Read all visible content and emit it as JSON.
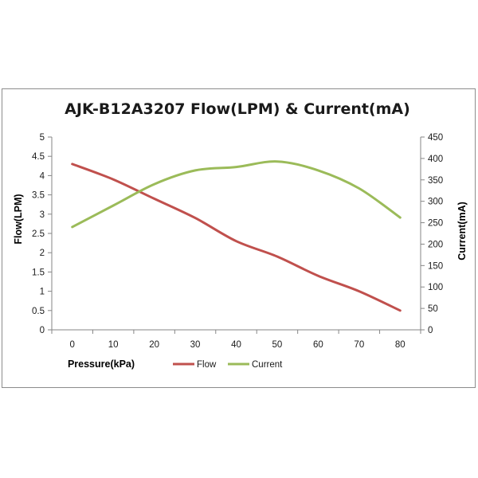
{
  "chart_data": {
    "type": "line",
    "title": "AJK-B12A3207 Flow(LPM) & Current(mA)",
    "xlabel": "Pressure(kPa)",
    "ylabel": "Flow(LPM)",
    "y2label": "Current(mA)",
    "x": [
      0,
      10,
      20,
      30,
      40,
      50,
      60,
      70,
      80
    ],
    "xticks": [
      "0",
      "10",
      "20",
      "30",
      "40",
      "50",
      "60",
      "70",
      "80"
    ],
    "ylim": [
      0,
      5
    ],
    "yticks": [
      "0",
      "0.5",
      "1",
      "1.5",
      "2",
      "2.5",
      "3",
      "3.5",
      "4",
      "4.5",
      "5"
    ],
    "y2lim": [
      0,
      450
    ],
    "y2ticks": [
      "0",
      "50",
      "100",
      "150",
      "200",
      "250",
      "300",
      "350",
      "400",
      "450"
    ],
    "grid": false,
    "legend": "bottom",
    "series": [
      {
        "name": "Flow",
        "axis": "left",
        "color": "#c0504d",
        "values": [
          4.3,
          3.9,
          3.4,
          2.9,
          2.3,
          1.9,
          1.4,
          1.0,
          0.5
        ]
      },
      {
        "name": "Current",
        "axis": "right",
        "color": "#9bbb59",
        "values": [
          240,
          290,
          340,
          372,
          380,
          393,
          372,
          330,
          262
        ]
      }
    ]
  }
}
